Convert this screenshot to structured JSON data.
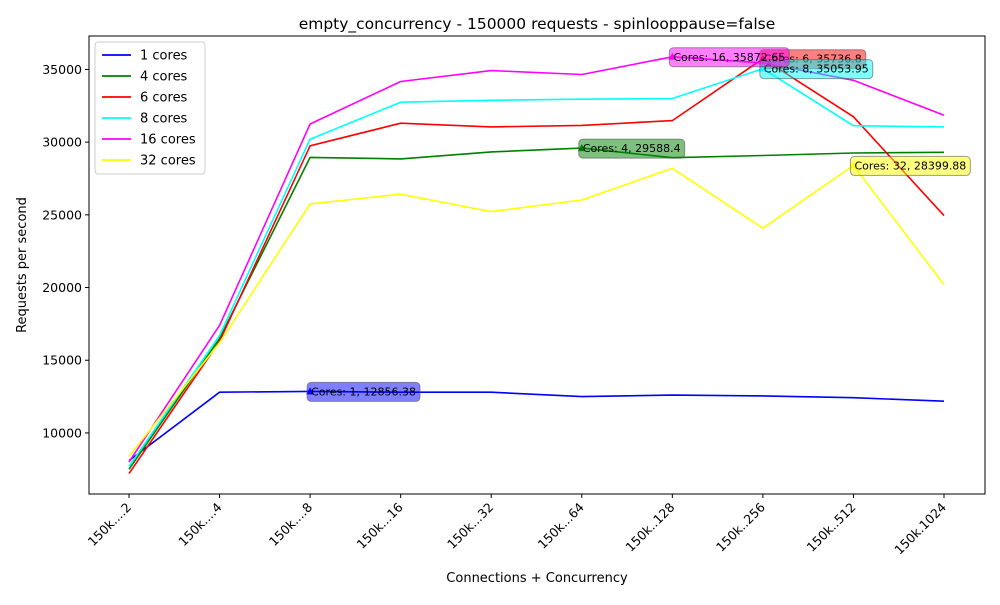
{
  "chart_data": {
    "type": "line",
    "title": "empty_concurrency - 150000 requests - spinlooppause=false",
    "xlabel": "Connections + Concurrency",
    "ylabel": "Requests per second",
    "categories": [
      "150k....2",
      "150k....4",
      "150k....8",
      "150k...16",
      "150k...32",
      "150k...64",
      "150k..128",
      "150k..256",
      "150k..512",
      "150k.1024"
    ],
    "ylim": [
      5800,
      37300
    ],
    "yticks": [
      10000,
      15000,
      20000,
      25000,
      30000,
      35000
    ],
    "legend_position": "upper-left",
    "grid": false,
    "series": [
      {
        "name": "1 cores",
        "color": "#0000ff",
        "values": [
          8100,
          12800,
          12856.38,
          12800,
          12800,
          12500,
          12600,
          12550,
          12420,
          12180
        ]
      },
      {
        "name": "4 cores",
        "color": "#008000",
        "values": [
          7500,
          16500,
          28950,
          28850,
          29330,
          29588.4,
          28930,
          29080,
          29250,
          29300
        ]
      },
      {
        "name": "6 cores",
        "color": "#ff0000",
        "values": [
          7200,
          16300,
          29750,
          31300,
          31050,
          31150,
          31480,
          35736.8,
          31750,
          24950
        ]
      },
      {
        "name": "8 cores",
        "color": "#00ffff",
        "values": [
          7700,
          16700,
          30200,
          32750,
          32880,
          32950,
          33000,
          35053.95,
          31130,
          31050
        ]
      },
      {
        "name": "16 cores",
        "color": "#ff00ff",
        "values": [
          8000,
          17400,
          31250,
          34170,
          34920,
          34650,
          35872.65,
          35450,
          34250,
          31850
        ]
      },
      {
        "name": "32 cores",
        "color": "#ffff00",
        "values": [
          8400,
          16200,
          25750,
          26420,
          25220,
          26020,
          28200,
          24080,
          28399.88,
          20200
        ]
      }
    ],
    "annotations": [
      {
        "text": "Cores: 1, 12856.38",
        "series": 0,
        "index": 2,
        "bg": "#0000ff"
      },
      {
        "text": "Cores: 4, 29588.4",
        "series": 1,
        "index": 5,
        "bg": "#008000"
      },
      {
        "text": "Cores: 6, 35736.8",
        "series": 2,
        "index": 7,
        "bg": "#ff0000"
      },
      {
        "text": "Cores: 8, 35053.95",
        "series": 3,
        "index": 7,
        "bg": "#00ffff"
      },
      {
        "text": "Cores: 16, 35872.65",
        "series": 4,
        "index": 6,
        "bg": "#ff00ff"
      },
      {
        "text": "Cores: 32, 28399.88",
        "series": 5,
        "index": 8,
        "bg": "#ffff00"
      }
    ]
  }
}
